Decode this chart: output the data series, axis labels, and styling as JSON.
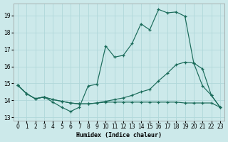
{
  "xlabel": "Humidex (Indice chaleur)",
  "xlim": [
    -0.5,
    23.5
  ],
  "ylim": [
    12.8,
    19.7
  ],
  "yticks": [
    13,
    14,
    15,
    16,
    17,
    18,
    19
  ],
  "xticks": [
    0,
    1,
    2,
    3,
    4,
    5,
    6,
    7,
    8,
    9,
    10,
    11,
    12,
    13,
    14,
    15,
    16,
    17,
    18,
    19,
    20,
    21,
    22,
    23
  ],
  "bg_color": "#cce9ea",
  "grid_color": "#b0d8da",
  "line_color": "#1a6b5a",
  "line1_y": [
    14.9,
    14.4,
    14.1,
    14.2,
    13.9,
    13.6,
    13.35,
    13.6,
    14.85,
    14.95,
    17.2,
    16.55,
    16.65,
    17.35,
    18.5,
    18.15,
    19.35,
    19.15,
    19.2,
    18.95,
    16.2,
    14.85,
    14.3,
    13.6
  ],
  "line2_y": [
    14.9,
    14.4,
    14.1,
    14.2,
    14.05,
    13.95,
    13.85,
    13.8,
    13.8,
    13.85,
    13.95,
    14.05,
    14.15,
    14.3,
    14.5,
    14.65,
    15.15,
    15.6,
    16.1,
    16.25,
    16.2,
    15.85,
    14.3,
    13.6
  ],
  "line3_y": [
    14.9,
    14.4,
    14.1,
    14.2,
    14.05,
    13.95,
    13.85,
    13.8,
    13.8,
    13.85,
    13.9,
    13.9,
    13.9,
    13.9,
    13.9,
    13.9,
    13.9,
    13.9,
    13.9,
    13.85,
    13.85,
    13.85,
    13.85,
    13.6
  ],
  "xlabel_fontsize": 6.0,
  "tick_fontsize": 5.5
}
